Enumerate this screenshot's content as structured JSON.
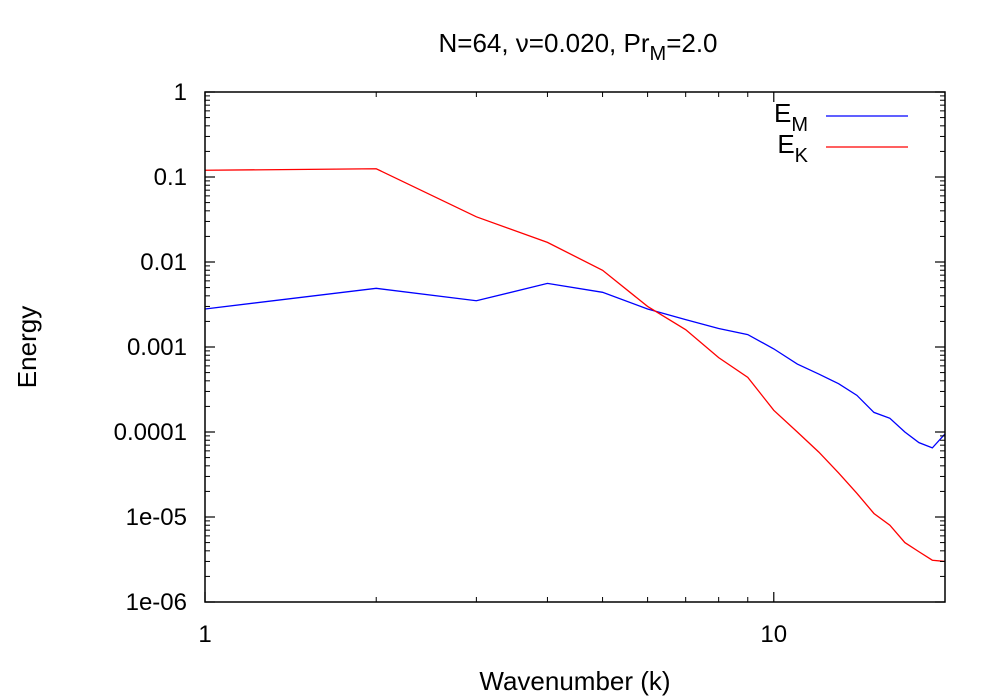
{
  "chart_data": {
    "type": "line",
    "title": {
      "main": "N=64, ν=0.020, Pr",
      "sub": "M",
      "tail": "=2.0"
    },
    "xlabel": "Wavenumber (k)",
    "ylabel": "Energy",
    "x_scale": "log",
    "y_scale": "log",
    "xlim": [
      1,
      20
    ],
    "ylim": [
      1e-06,
      1
    ],
    "x_ticks": [
      {
        "value": 1,
        "label": "1"
      },
      {
        "value": 10,
        "label": "10"
      }
    ],
    "y_ticks": [
      {
        "value": 1,
        "label": "1"
      },
      {
        "value": 0.1,
        "label": "0.1"
      },
      {
        "value": 0.01,
        "label": "0.01"
      },
      {
        "value": 0.001,
        "label": "0.001"
      },
      {
        "value": 0.0001,
        "label": "0.0001"
      },
      {
        "value": 1e-05,
        "label": "1e-05"
      },
      {
        "value": 1e-06,
        "label": "1e-06"
      }
    ],
    "grid": false,
    "legend_position": "top-right",
    "series": [
      {
        "name": "E",
        "sub": "M",
        "color": "#0000ff",
        "points": [
          [
            1,
            0.0028
          ],
          [
            2,
            0.0049
          ],
          [
            3,
            0.0035
          ],
          [
            4,
            0.0056
          ],
          [
            5,
            0.0044
          ],
          [
            6,
            0.0028
          ],
          [
            7,
            0.0021
          ],
          [
            8,
            0.00165
          ],
          [
            9,
            0.0014
          ],
          [
            10,
            0.00095
          ],
          [
            11,
            0.00063
          ],
          [
            12,
            0.00048
          ],
          [
            13,
            0.00037
          ],
          [
            14,
            0.00027
          ],
          [
            15,
            0.00017
          ],
          [
            16,
            0.000145
          ],
          [
            17,
            0.0001
          ],
          [
            18,
            7.5e-05
          ],
          [
            19,
            6.5e-05
          ],
          [
            20,
            9.5e-05
          ]
        ]
      },
      {
        "name": "E",
        "sub": "K",
        "color": "#ff0000",
        "points": [
          [
            1,
            0.12
          ],
          [
            2,
            0.125
          ],
          [
            3,
            0.034
          ],
          [
            4,
            0.017
          ],
          [
            5,
            0.008
          ],
          [
            6,
            0.003
          ],
          [
            7,
            0.0016
          ],
          [
            8,
            0.00075
          ],
          [
            9,
            0.00044
          ],
          [
            10,
            0.00018
          ],
          [
            11,
            0.0001
          ],
          [
            12,
            5.8e-05
          ],
          [
            13,
            3.3e-05
          ],
          [
            14,
            1.9e-05
          ],
          [
            15,
            1.1e-05
          ],
          [
            16,
            8e-06
          ],
          [
            17,
            5e-06
          ],
          [
            18,
            3.9e-06
          ],
          [
            19,
            3.1e-06
          ],
          [
            20,
            3e-06
          ]
        ]
      }
    ]
  }
}
